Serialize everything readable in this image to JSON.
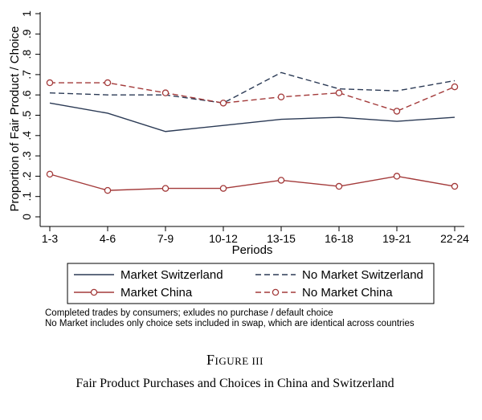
{
  "chart_data": {
    "type": "line",
    "title": "",
    "xlabel": "Periods",
    "ylabel": "Proportion of Fair Product / Choice",
    "categories": [
      "1-3",
      "4-6",
      "7-9",
      "10-12",
      "13-15",
      "16-18",
      "19-21",
      "22-24"
    ],
    "ylim": [
      0,
      1
    ],
    "yticks": [
      "0",
      ".1",
      ".2",
      ".3",
      ".4",
      ".5",
      ".6",
      ".7",
      ".8",
      ".9",
      "1"
    ],
    "grid": false,
    "legend_position": "bottom",
    "series": [
      {
        "name": "Market Switzerland",
        "style": "solid",
        "marker": "none",
        "color": "#2b3a55",
        "values": [
          0.56,
          0.51,
          0.42,
          0.45,
          0.48,
          0.49,
          0.47,
          0.49
        ]
      },
      {
        "name": "No Market Switzerland",
        "style": "dashed",
        "marker": "none",
        "color": "#2b3a55",
        "values": [
          0.61,
          0.6,
          0.6,
          0.56,
          0.71,
          0.63,
          0.62,
          0.67
        ]
      },
      {
        "name": "Market China",
        "style": "solid",
        "marker": "circle",
        "color": "#a33a3a",
        "values": [
          0.21,
          0.13,
          0.14,
          0.14,
          0.18,
          0.15,
          0.2,
          0.15
        ]
      },
      {
        "name": "No Market China",
        "style": "dashed",
        "marker": "circle",
        "color": "#a33a3a",
        "values": [
          0.66,
          0.66,
          0.61,
          0.56,
          0.59,
          0.61,
          0.52,
          0.64
        ]
      }
    ]
  },
  "notes": [
    "Completed trades by consumers; exludes no purchase / default choice",
    "No Market includes only choice sets included in swap, which are identical across countries"
  ],
  "figure": {
    "label_prefix": "F",
    "label_rest": "IGURE III",
    "caption": "Fair Product Purchases and Choices in China and Switzerland"
  }
}
